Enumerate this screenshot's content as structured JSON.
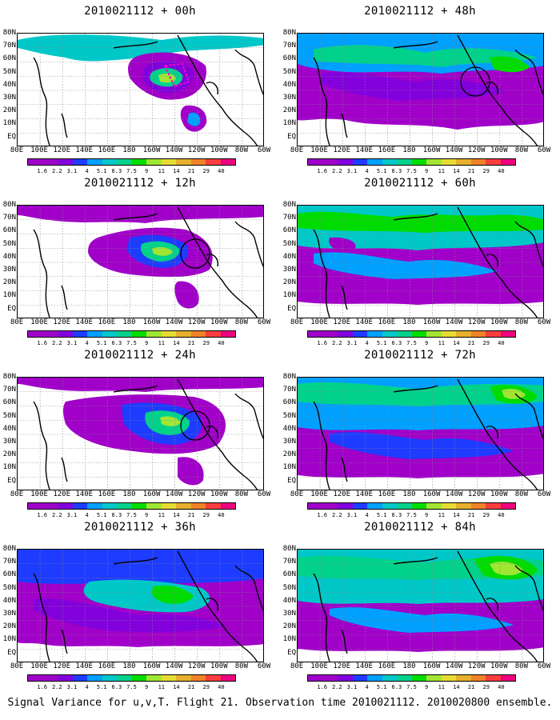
{
  "colorbar": {
    "labels": [
      "1.6",
      "2.2",
      "3.1",
      "4",
      "5.1",
      "6.3",
      "7.5",
      "9",
      "11",
      "14",
      "21",
      "29",
      "40"
    ],
    "colors": [
      "#a000c8",
      "#8200dc",
      "#1e3cff",
      "#00a0ff",
      "#00c8c8",
      "#00d28c",
      "#00dc00",
      "#a0e632",
      "#e6dc32",
      "#e6af2d",
      "#f08228",
      "#fa3c3c",
      "#f00082"
    ]
  },
  "axes": {
    "lat_labels": [
      "80N",
      "70N",
      "60N",
      "50N",
      "40N",
      "30N",
      "20N",
      "10N",
      "EQ"
    ],
    "lon_labels": [
      "80E",
      "100E",
      "120E",
      "140E",
      "160E",
      "180",
      "160W",
      "140W",
      "120W",
      "100W",
      "80W",
      "60W"
    ]
  },
  "panels": [
    {
      "title": "2010021112 + 00h",
      "circle": false,
      "marker": true
    },
    {
      "title": "2010021112 + 48h",
      "circle": true,
      "marker": false
    },
    {
      "title": "2010021112 + 12h",
      "circle": true,
      "marker": false
    },
    {
      "title": "2010021112 + 60h",
      "circle": false,
      "marker": false
    },
    {
      "title": "2010021112 + 24h",
      "circle": true,
      "marker": false
    },
    {
      "title": "2010021112 + 72h",
      "circle": false,
      "marker": false
    },
    {
      "title": "2010021112 + 36h",
      "circle": false,
      "marker": false
    },
    {
      "title": "2010021112 + 84h",
      "circle": false,
      "marker": false
    }
  ],
  "footer": "Signal Variance for u,v,T. Flight 21. Observation time 2010021112. 2010020800 ensemble."
}
